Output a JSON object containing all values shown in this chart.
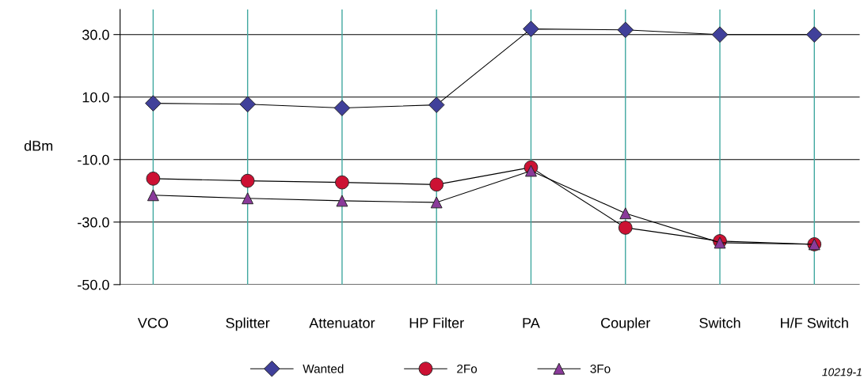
{
  "chart_data": {
    "type": "line",
    "ylabel": "dBm",
    "categories": [
      "VCO",
      "Splitter",
      "Attenuator",
      "HP Filter",
      "PA",
      "Coupler",
      "Switch",
      "H/F Switch"
    ],
    "series": [
      {
        "name": "Wanted",
        "color": "#40409a",
        "marker": "diamond",
        "values": [
          8.0,
          7.7,
          6.5,
          7.5,
          31.8,
          31.5,
          30.0,
          30.0
        ]
      },
      {
        "name": "2Fo",
        "color": "#cc1133",
        "marker": "circle",
        "values": [
          -16.1,
          -16.8,
          -17.3,
          -18.0,
          -12.5,
          -31.8,
          -36.1,
          -37.1
        ]
      },
      {
        "name": "3Fo",
        "color": "#8a3a9a",
        "marker": "triangle",
        "values": [
          -21.4,
          -22.4,
          -23.2,
          -23.7,
          -13.6,
          -27.2,
          -36.6,
          -37.1
        ]
      }
    ],
    "ylim": [
      -50,
      38
    ],
    "yticks": [
      {
        "value": -50,
        "label": "-50.0"
      },
      {
        "value": -30,
        "label": "-30.0"
      },
      {
        "value": -10,
        "label": "-10.0"
      },
      {
        "value": 10,
        "label": "10.0"
      },
      {
        "value": 30,
        "label": "30.0"
      }
    ],
    "grid": true,
    "legend": "bottom",
    "line_style": "solid",
    "annotations": [
      "10219-1"
    ]
  }
}
